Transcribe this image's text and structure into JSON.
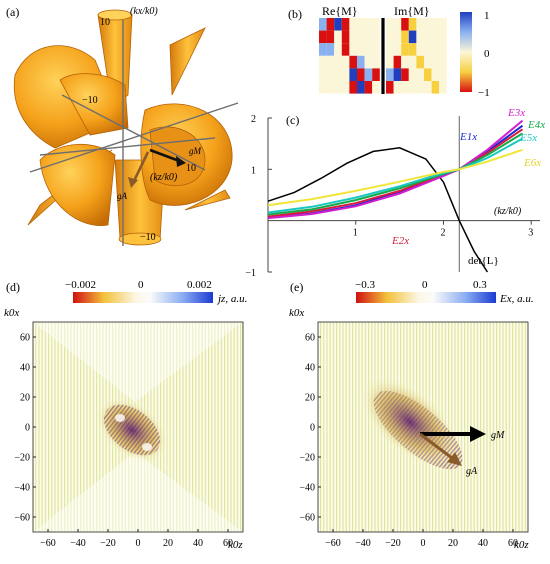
{
  "panels": {
    "a": {
      "label": "(a)",
      "axis_kx": "(kx/k0)",
      "axis_kz": "(kz/k0)",
      "ticks": [
        "10",
        "−10",
        "10",
        "−10"
      ],
      "vec_gM": "gM",
      "vec_gA": "gA",
      "surface_color": "#f5a21b"
    },
    "b": {
      "label": "(b)",
      "re_title": "Re{M}",
      "im_title": "Im{M}",
      "colorbar_ticks": [
        "1",
        "0",
        "−1"
      ],
      "colormap": [
        "#1f3fbf",
        "#8ab0f0",
        "#fbf6d8",
        "#f7d040",
        "#d81010"
      ]
    },
    "c": {
      "label": "(c)",
      "xaxis_label": "(kz/k0)",
      "det_label": "det{L}",
      "curve_labels": [
        "E3x",
        "E4x",
        "E1x",
        "E5x",
        "E6x",
        "E2x"
      ]
    },
    "d": {
      "label": "(d)",
      "cbar_ticks": [
        "−0.002",
        "0",
        "0.002"
      ],
      "cbar_label": "jz, a.u.",
      "ylabel": "k0x",
      "xlabel": "k0z"
    },
    "e": {
      "label": "(e)",
      "cbar_ticks": [
        "−0.3",
        "0",
        "0.3"
      ],
      "cbar_label": "Ex, a.u.",
      "ylabel": "k0x",
      "xlabel": "k0z",
      "vec_gM": "gM",
      "vec_gA": "gA"
    }
  },
  "chart_data": {
    "type": "line",
    "panel": "(c)",
    "xlabel": "(kz/k0)",
    "ylabel": "",
    "xlim": [
      0,
      3.1
    ],
    "ylim": [
      -1,
      2
    ],
    "xticks": [
      "1",
      "2",
      "3"
    ],
    "yticks": [
      "−1",
      "1",
      "2"
    ],
    "crossing_x": 2.18,
    "series": [
      {
        "name": "det{L}",
        "color": "#000000",
        "x": [
          0,
          0.3,
          0.6,
          0.9,
          1.2,
          1.5,
          1.8,
          2.0,
          2.18,
          2.35,
          2.5
        ],
        "y": [
          0.38,
          0.55,
          0.82,
          1.12,
          1.35,
          1.42,
          1.2,
          0.75,
          0.0,
          -0.6,
          -1.0
        ]
      },
      {
        "name": "E1x",
        "color": "#1a2bd6",
        "x": [
          0,
          0.5,
          1.0,
          1.5,
          2.0,
          2.18,
          2.5,
          2.9
        ],
        "y": [
          0.06,
          0.14,
          0.3,
          0.55,
          0.88,
          1.0,
          1.35,
          1.85
        ]
      },
      {
        "name": "E2x",
        "color": "#d81b3c",
        "x": [
          0,
          0.5,
          1.0,
          1.5,
          2.0,
          2.18,
          2.5,
          2.9
        ],
        "y": [
          0.08,
          0.18,
          0.34,
          0.58,
          0.9,
          1.0,
          1.32,
          1.78
        ]
      },
      {
        "name": "E3x",
        "color": "#d21ecf",
        "x": [
          0,
          0.5,
          1.0,
          1.5,
          2.0,
          2.18,
          2.5,
          2.9
        ],
        "y": [
          0.05,
          0.13,
          0.28,
          0.53,
          0.87,
          1.0,
          1.38,
          1.95
        ]
      },
      {
        "name": "E4x",
        "color": "#16a94a",
        "x": [
          0,
          0.5,
          1.0,
          1.5,
          2.0,
          2.18,
          2.5,
          2.9
        ],
        "y": [
          0.12,
          0.22,
          0.4,
          0.63,
          0.91,
          1.0,
          1.28,
          1.7
        ]
      },
      {
        "name": "E5x",
        "color": "#19c8c0",
        "x": [
          0,
          0.5,
          1.0,
          1.5,
          2.0,
          2.18,
          2.5,
          2.9
        ],
        "y": [
          0.16,
          0.27,
          0.45,
          0.67,
          0.93,
          1.0,
          1.22,
          1.6
        ]
      },
      {
        "name": "E6x",
        "color": "#f0e63a",
        "x": [
          0,
          0.5,
          1.0,
          1.5,
          2.0,
          2.18,
          2.5,
          2.9
        ],
        "y": [
          0.3,
          0.42,
          0.58,
          0.76,
          0.95,
          1.0,
          1.15,
          1.38
        ]
      }
    ]
  }
}
